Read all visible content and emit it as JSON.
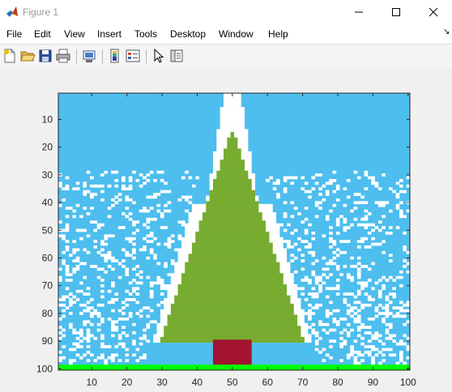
{
  "window": {
    "title": "Figure 1",
    "icon": "matlab-logo-icon",
    "controls": [
      "minimize-icon",
      "maximize-icon",
      "close-icon"
    ]
  },
  "menu": [
    "File",
    "Edit",
    "View",
    "Insert",
    "Tools",
    "Desktop",
    "Window",
    "Help"
  ],
  "toolbar": [
    "new-figure-icon",
    "open-file-icon",
    "save-icon",
    "print-icon",
    "link-plot-icon",
    "insert-colorbar-icon",
    "insert-legend-icon",
    "edit-plot-icon",
    "property-inspector-icon"
  ],
  "chart_data": {
    "type": "heatmap",
    "title": "",
    "xlabel": "",
    "ylabel": "",
    "xlim": [
      0.5,
      100.5
    ],
    "ylim": [
      0.5,
      100.5
    ],
    "x_ticks": [
      10,
      20,
      30,
      40,
      50,
      60,
      70,
      80,
      90,
      100
    ],
    "y_ticks": [
      10,
      20,
      30,
      40,
      50,
      60,
      70,
      80,
      90,
      100
    ],
    "y_direction": "reverse",
    "colors": {
      "sky": "#4dbeee",
      "snow": "#ffffff",
      "tree": "#77ac30",
      "trunk": "#a2142f",
      "ground": "#00ff00"
    },
    "regions": {
      "tree": {
        "apex_row": 15,
        "base_row": 90,
        "center_col": 50,
        "half_width_at_base": 20
      },
      "snow_outline": {
        "apex_row": 1,
        "thickness": 2
      },
      "trunk": {
        "rows": [
          90,
          99
        ],
        "cols": [
          45,
          55
        ]
      },
      "ground": {
        "rows": [
          99,
          100
        ]
      },
      "snowfall": {
        "rows": [
          29,
          98
        ],
        "density": 0.25
      }
    }
  }
}
